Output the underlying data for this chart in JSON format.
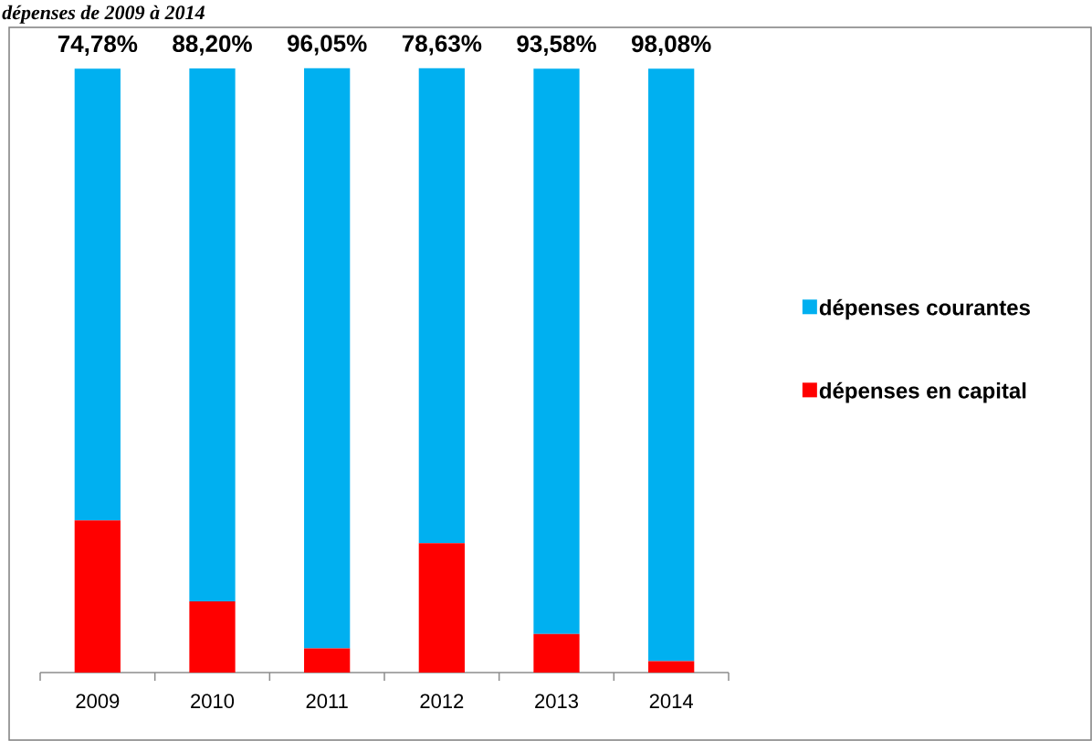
{
  "chart_data": {
    "type": "bar",
    "stacked": true,
    "title": "dépenses de 2009 à 2014",
    "categories": [
      "2009",
      "2010",
      "2011",
      "2012",
      "2013",
      "2014"
    ],
    "series": [
      {
        "name": "dépenses en capital",
        "color": "#ff0000",
        "values": [
          25.2,
          11.8,
          4.0,
          21.4,
          6.4,
          1.9
        ]
      },
      {
        "name": "dépenses courantes",
        "color": "#00b0f0",
        "values": [
          74.78,
          88.2,
          96.05,
          78.63,
          93.58,
          98.08
        ],
        "value_labels": [
          "74,78%",
          "88,20%",
          "96,05%",
          "78,63%",
          "93,58%",
          "98,08%"
        ]
      }
    ],
    "ylim": [
      0,
      100
    ],
    "tick_labels": "x",
    "legend": "right"
  }
}
